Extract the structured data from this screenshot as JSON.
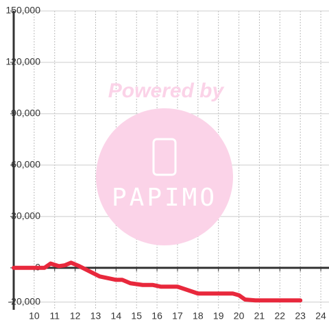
{
  "chart_data": {
    "type": "line",
    "x": [
      9,
      10.5,
      10.8,
      11.2,
      11.5,
      11.8,
      12.2,
      12.7,
      13.2,
      14,
      14.3,
      14.7,
      15.3,
      15.8,
      16.2,
      17,
      17.5,
      18,
      19,
      19.7,
      20,
      20.3,
      20.8,
      23
    ],
    "series": [
      {
        "name": "",
        "color": "#e8283c",
        "values": [
          0,
          0,
          2500,
          1000,
          1500,
          3000,
          1000,
          -2000,
          -5000,
          -7000,
          -7000,
          -9000,
          -10000,
          -10000,
          -11000,
          -11000,
          -13000,
          -15000,
          -15000,
          -15000,
          -16000,
          -18500,
          -19000,
          -19000
        ]
      }
    ],
    "xlim": [
      9,
      24.4
    ],
    "xticks": [
      10,
      11,
      12,
      13,
      14,
      15,
      16,
      17,
      18,
      19,
      20,
      21,
      22,
      23,
      24
    ],
    "ylim": [
      -24500,
      150000
    ],
    "yticks": [
      {
        "value": -20000,
        "label": "-20,000"
      },
      0,
      {
        "value": 30000,
        "label": "30,000"
      },
      {
        "value": 60000,
        "label": "60,000"
      },
      {
        "value": 90000,
        "label": "90,000"
      },
      {
        "value": 120000,
        "label": "120,000"
      },
      {
        "value": 150000,
        "label": "150,000"
      }
    ],
    "grid": true,
    "watermark": {
      "line1": "Powered by",
      "line2": "PAPIMO"
    }
  }
}
